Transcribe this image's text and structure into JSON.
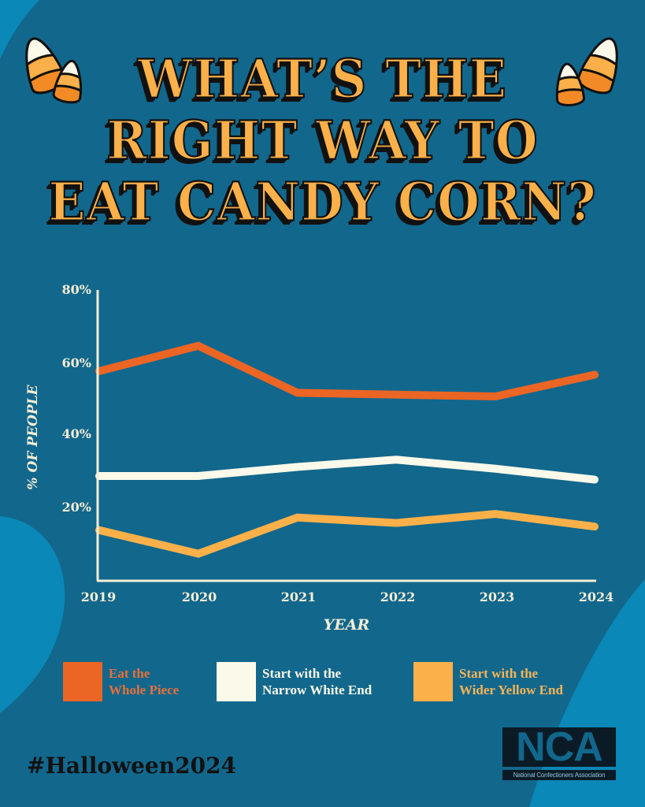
{
  "title": {
    "lines": [
      "WHAT’S THE",
      "RIGHT WAY TO",
      "EAT CANDY CORN?"
    ]
  },
  "colors": {
    "background": "#12678C",
    "background_accent": "#0A88B8",
    "whole_piece": "#EB6524",
    "narrow_white": "#FBF9EA",
    "wider_yellow": "#FBB04A",
    "axis": "#F5EED5",
    "title_fill": "#FBB04A"
  },
  "chart": {
    "y_ticks": [
      "80%",
      "60%",
      "40%",
      "20%"
    ],
    "x_ticks": [
      "2019",
      "2020",
      "2021",
      "2022",
      "2023",
      "2024"
    ],
    "ylabel": "% OF PEOPLE",
    "xlabel": "YEAR"
  },
  "legend": [
    {
      "label_line1": "Eat the",
      "label_line2": "Whole Piece",
      "color": "#EB6524"
    },
    {
      "label_line1": "Start with the",
      "label_line2": "Narrow White End",
      "color": "#FBF9EA"
    },
    {
      "label_line1": "Start with the",
      "label_line2": "Wider Yellow End",
      "color": "#FBB04A"
    }
  ],
  "footer": {
    "hashtag": "#Halloween2024",
    "logo_letters": "NCA",
    "logo_name": "National Confectioners Association"
  },
  "chart_data": {
    "type": "line",
    "title": "What's the Right Way to Eat Candy Corn?",
    "x": [
      "2019",
      "2020",
      "2021",
      "2022",
      "2023",
      "2024"
    ],
    "series": [
      {
        "name": "Eat the Whole Piece",
        "color": "#EB6524",
        "values": [
          58,
          65,
          52,
          51.5,
          51,
          57
        ]
      },
      {
        "name": "Start with the Narrow White End",
        "color": "#FBF9EA",
        "values": [
          29,
          29,
          31.5,
          33.5,
          31,
          28
        ]
      },
      {
        "name": "Start with the Wider Yellow End",
        "color": "#FBB04A",
        "values": [
          14,
          7.5,
          17.5,
          16,
          18.5,
          15
        ]
      }
    ],
    "xlabel": "YEAR",
    "ylabel": "% OF PEOPLE",
    "ylim": [
      0,
      80
    ],
    "y_ticks": [
      20,
      40,
      60,
      80
    ],
    "grid": false,
    "legend_position": "bottom"
  }
}
